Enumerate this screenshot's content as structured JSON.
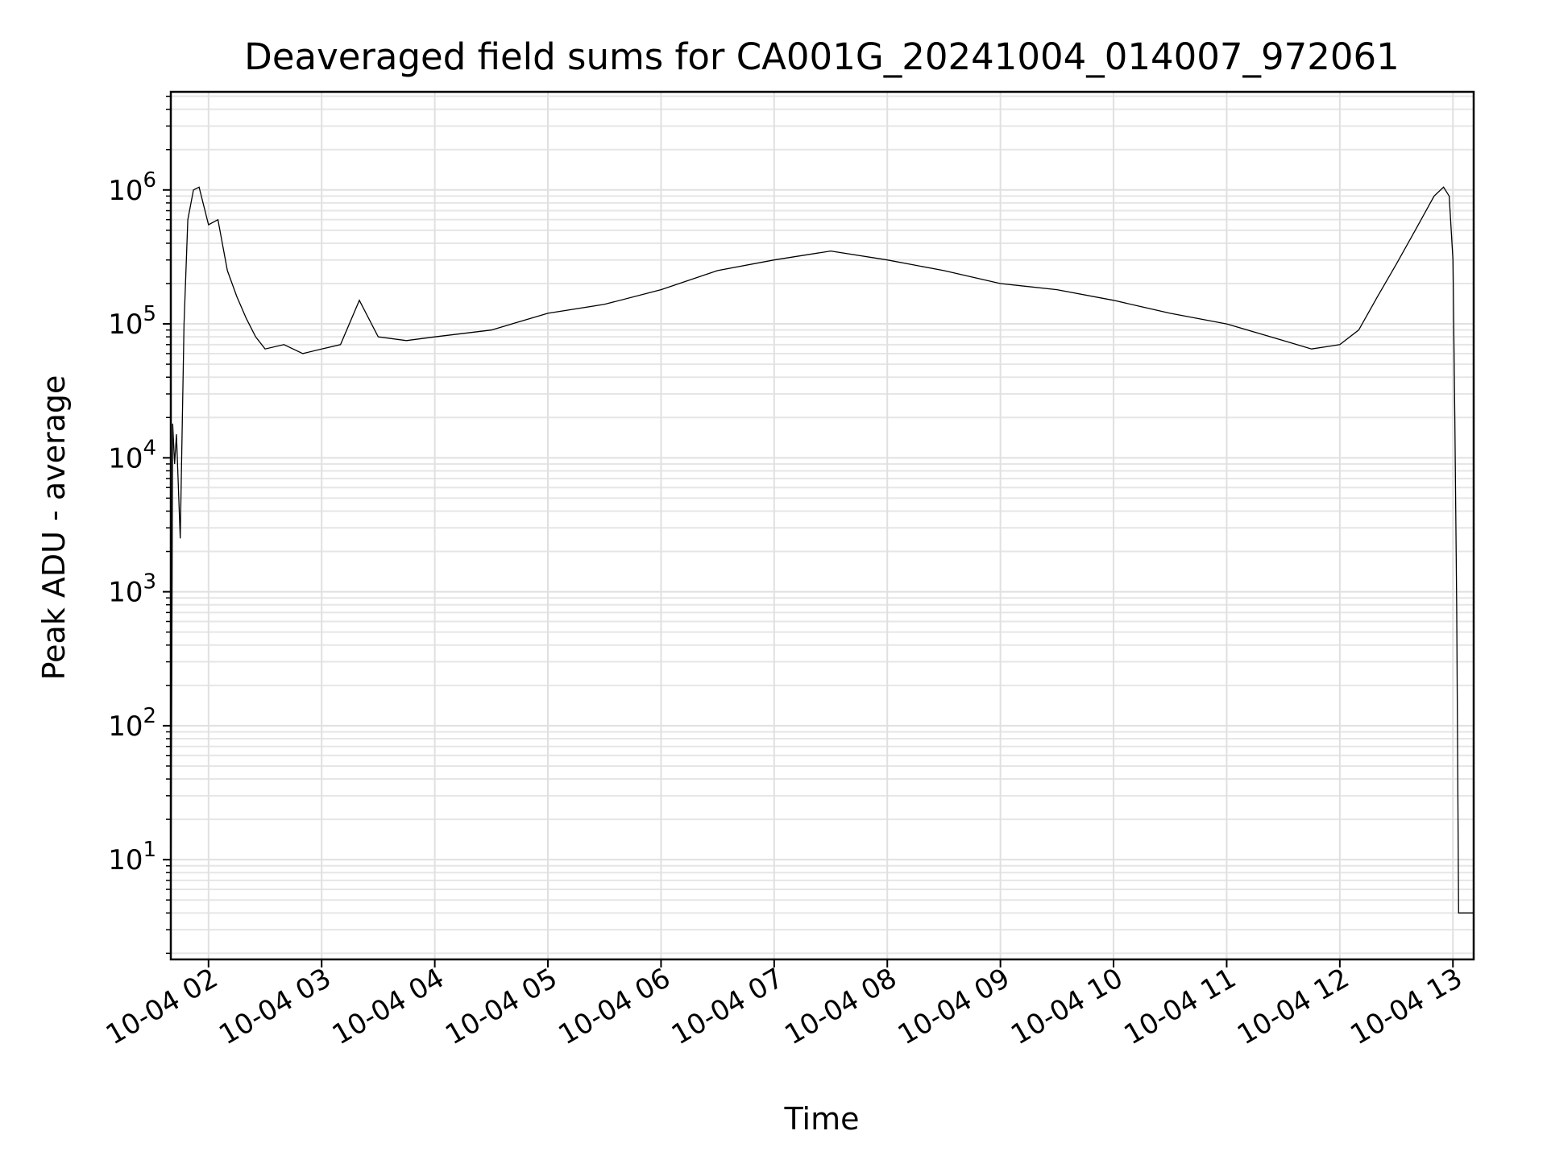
{
  "chart_data": {
    "type": "line",
    "title": "Deaveraged field sums for CA001G_20241004_014007_972061",
    "xlabel": "Time",
    "ylabel": "Peak ADU - average",
    "yscale": "log",
    "ylim": [
      1.8,
      5400000
    ],
    "xlim": [
      "10-04 01:40",
      "10-04 13:11"
    ],
    "grid": true,
    "line_color": "#000000",
    "x_ticks": [
      "10-04 02",
      "10-04 03",
      "10-04 04",
      "10-04 05",
      "10-04 06",
      "10-04 07",
      "10-04 08",
      "10-04 09",
      "10-04 10",
      "10-04 11",
      "10-04 12",
      "10-04 13"
    ],
    "y_ticks": [
      {
        "value": 10,
        "base": "10",
        "exp": "1"
      },
      {
        "value": 100,
        "base": "10",
        "exp": "2"
      },
      {
        "value": 1000,
        "base": "10",
        "exp": "3"
      },
      {
        "value": 10000,
        "base": "10",
        "exp": "4"
      },
      {
        "value": 100000,
        "base": "10",
        "exp": "5"
      },
      {
        "value": 1000000,
        "base": "10",
        "exp": "6"
      }
    ],
    "series": [
      {
        "x": [
          "10-04 01:40",
          "10-04 01:41",
          "10-04 01:42",
          "10-04 01:43",
          "10-04 01:45",
          "10-04 01:47",
          "10-04 01:49",
          "10-04 01:52",
          "10-04 01:55",
          "10-04 02:00",
          "10-04 02:05",
          "10-04 02:10",
          "10-04 02:15",
          "10-04 02:20",
          "10-04 02:25",
          "10-04 02:30",
          "10-04 02:40",
          "10-04 02:50",
          "10-04 03:00",
          "10-04 03:10",
          "10-04 03:20",
          "10-04 03:30",
          "10-04 03:45",
          "10-04 04:00",
          "10-04 04:30",
          "10-04 05:00",
          "10-04 05:30",
          "10-04 06:00",
          "10-04 06:30",
          "10-04 07:00",
          "10-04 07:30",
          "10-04 08:00",
          "10-04 08:30",
          "10-04 09:00",
          "10-04 09:30",
          "10-04 10:00",
          "10-04 10:30",
          "10-04 11:00",
          "10-04 11:30",
          "10-04 11:45",
          "10-04 12:00",
          "10-04 12:10",
          "10-04 12:20",
          "10-04 12:30",
          "10-04 12:40",
          "10-04 12:50",
          "10-04 12:55",
          "10-04 12:58",
          "10-04 13:00",
          "10-04 13:01",
          "10-04 13:02",
          "10-04 13:03",
          "10-04 13:11"
        ],
        "y": [
          2,
          18000,
          9000,
          15000,
          2500,
          100000,
          600000,
          1000000,
          1050000,
          550000,
          600000,
          250000,
          160000,
          110000,
          80000,
          65000,
          70000,
          60000,
          65000,
          70000,
          150000,
          80000,
          75000,
          80000,
          90000,
          120000,
          140000,
          180000,
          250000,
          300000,
          350000,
          300000,
          250000,
          200000,
          180000,
          150000,
          120000,
          100000,
          75000,
          65000,
          70000,
          90000,
          160000,
          280000,
          500000,
          900000,
          1050000,
          900000,
          300000,
          20000,
          800,
          4,
          4
        ]
      }
    ]
  }
}
